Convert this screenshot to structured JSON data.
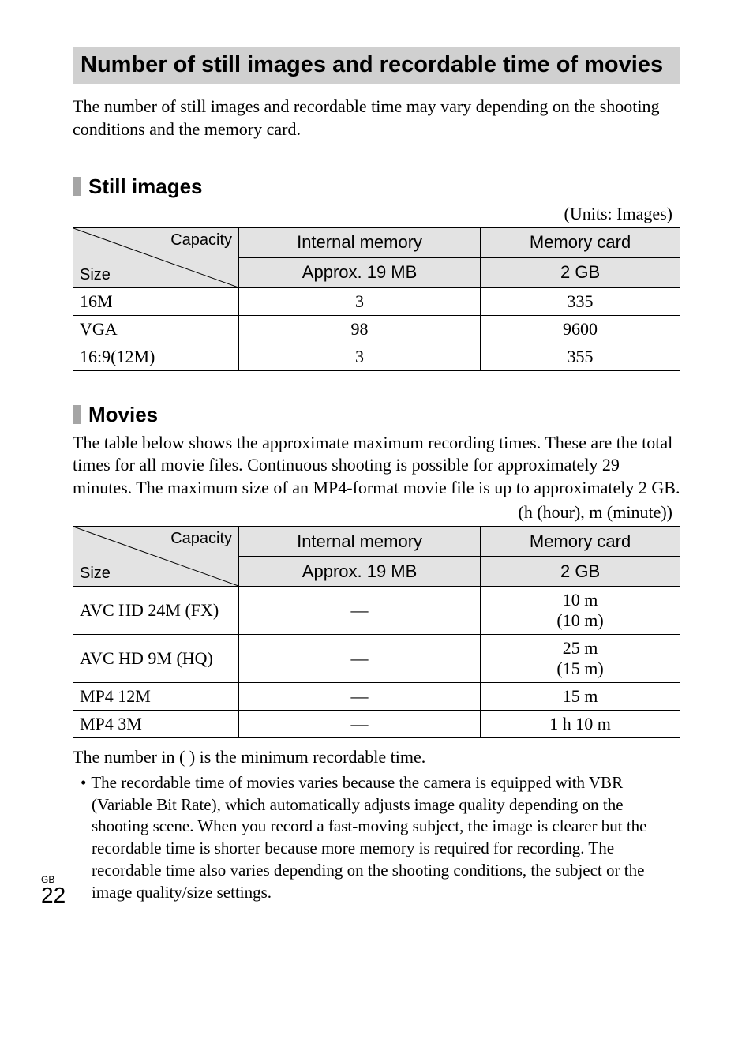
{
  "title": "Number of still images and recordable time of movies",
  "intro": "The number of still images and recordable time may vary depending on the shooting conditions and the memory card.",
  "still": {
    "heading": "Still images",
    "units": "(Units: Images)",
    "table": {
      "diag_capacity": "Capacity",
      "diag_size": "Size",
      "col_internal": "Internal memory",
      "col_card": "Memory card",
      "sub_internal": "Approx. 19 MB",
      "sub_card": "2 GB",
      "rows": [
        {
          "size": "16M",
          "internal": "3",
          "card": "335"
        },
        {
          "size": "VGA",
          "internal": "98",
          "card": "9600"
        },
        {
          "size": "16:9(12M)",
          "internal": "3",
          "card": "355"
        }
      ]
    }
  },
  "movies": {
    "heading": "Movies",
    "desc": "The table below shows the approximate maximum recording times. These are the total times for all movie files. Continuous shooting is possible for approximately 29 minutes. The maximum size of an MP4-format movie file is up to approximately 2 GB.",
    "units": "(h (hour), m (minute))",
    "table": {
      "diag_capacity": "Capacity",
      "diag_size": "Size",
      "col_internal": "Internal memory",
      "col_card": "Memory card",
      "sub_internal": "Approx. 19 MB",
      "sub_card": "2 GB",
      "rows": [
        {
          "size": "AVC HD 24M (FX)",
          "internal": "—",
          "card": "10 m\n(10 m)"
        },
        {
          "size": "AVC HD 9M (HQ)",
          "internal": "—",
          "card": "25 m\n(15 m)"
        },
        {
          "size": "MP4 12M",
          "internal": "—",
          "card": "15 m"
        },
        {
          "size": "MP4 3M",
          "internal": "—",
          "card": "1 h 10 m"
        }
      ]
    },
    "footnote": "The number in ( ) is the minimum recordable time.",
    "bullet": "The recordable time of movies varies because the camera is equipped with VBR (Variable Bit Rate), which automatically adjusts image quality depending on the shooting scene. When you record a fast-moving subject, the image is clearer but the recordable time is shorter because more memory is required for recording. The recordable time also varies depending on the shooting conditions, the subject or the image quality/size settings."
  },
  "page": {
    "gb": "GB",
    "num": "22"
  },
  "colors": {
    "title_bg": "#d0d0d0",
    "table_header_bg": "#e3e3e3",
    "bullet_bg": "#a5a5a5",
    "border": "#000000",
    "text": "#000000",
    "page_bg": "#ffffff"
  }
}
